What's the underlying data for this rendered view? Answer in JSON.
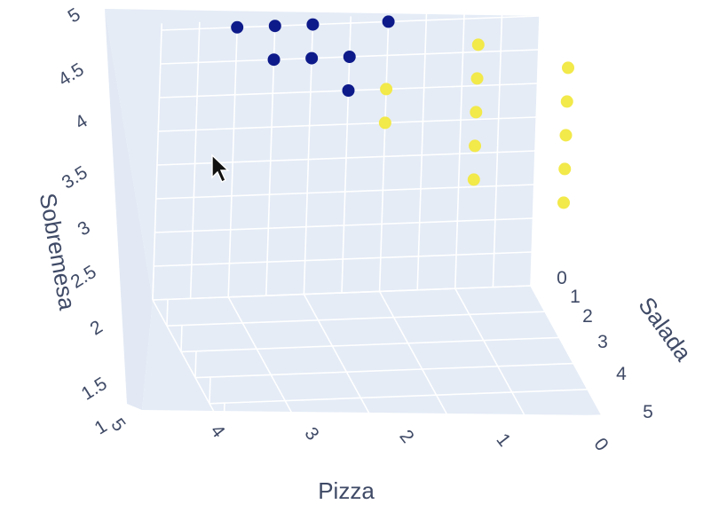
{
  "chart_data": {
    "type": "scatter3d",
    "axes": {
      "x": {
        "label": "Pizza",
        "ticks": [
          "5",
          "4",
          "3",
          "2",
          "1",
          "0"
        ]
      },
      "y": {
        "label": "Salada",
        "ticks": [
          "0",
          "1",
          "2",
          "3",
          "4",
          "5"
        ]
      },
      "z": {
        "label": "Sobremesa",
        "ticks": [
          "1",
          "1.5",
          "2",
          "2.5",
          "3",
          "3.5",
          "4",
          "4.5",
          "5"
        ]
      }
    },
    "series": [
      {
        "color": "#0d1a8a",
        "points": [
          {
            "pizza": 4,
            "salada": 0,
            "sobremesa": 5
          },
          {
            "pizza": 3.5,
            "salada": 0,
            "sobremesa": 5
          },
          {
            "pizza": 3,
            "salada": 0,
            "sobremesa": 5
          },
          {
            "pizza": 2,
            "salada": 0,
            "sobremesa": 5
          },
          {
            "pizza": 3.5,
            "salada": 0,
            "sobremesa": 4.5
          },
          {
            "pizza": 3,
            "salada": 0,
            "sobremesa": 4.5
          },
          {
            "pizza": 2.5,
            "salada": 0,
            "sobremesa": 4.5
          },
          {
            "pizza": 2.5,
            "salada": 0,
            "sobremesa": 4
          }
        ]
      },
      {
        "color": "#f2e94a",
        "points": [
          {
            "pizza": 1,
            "salada": 1,
            "sobremesa": 5
          },
          {
            "pizza": 0,
            "salada": 2,
            "sobremesa": 5
          },
          {
            "pizza": 1,
            "salada": 1,
            "sobremesa": 4.5
          },
          {
            "pizza": 0,
            "salada": 2,
            "sobremesa": 4.5
          },
          {
            "pizza": 2,
            "salada": 0,
            "sobremesa": 4
          },
          {
            "pizza": 1,
            "salada": 1,
            "sobremesa": 4
          },
          {
            "pizza": 0,
            "salada": 2,
            "sobremesa": 4
          },
          {
            "pizza": 2,
            "salada": 0,
            "sobremesa": 3.5
          },
          {
            "pizza": 1,
            "salada": 1,
            "sobremesa": 3.5
          },
          {
            "pizza": 0,
            "salada": 2,
            "sobremesa": 3.5
          },
          {
            "pizza": 1,
            "salada": 1,
            "sobremesa": 3
          },
          {
            "pizza": 0,
            "salada": 2,
            "sobremesa": 3
          }
        ]
      }
    ],
    "background": "#e5ecf6",
    "grid": true
  }
}
